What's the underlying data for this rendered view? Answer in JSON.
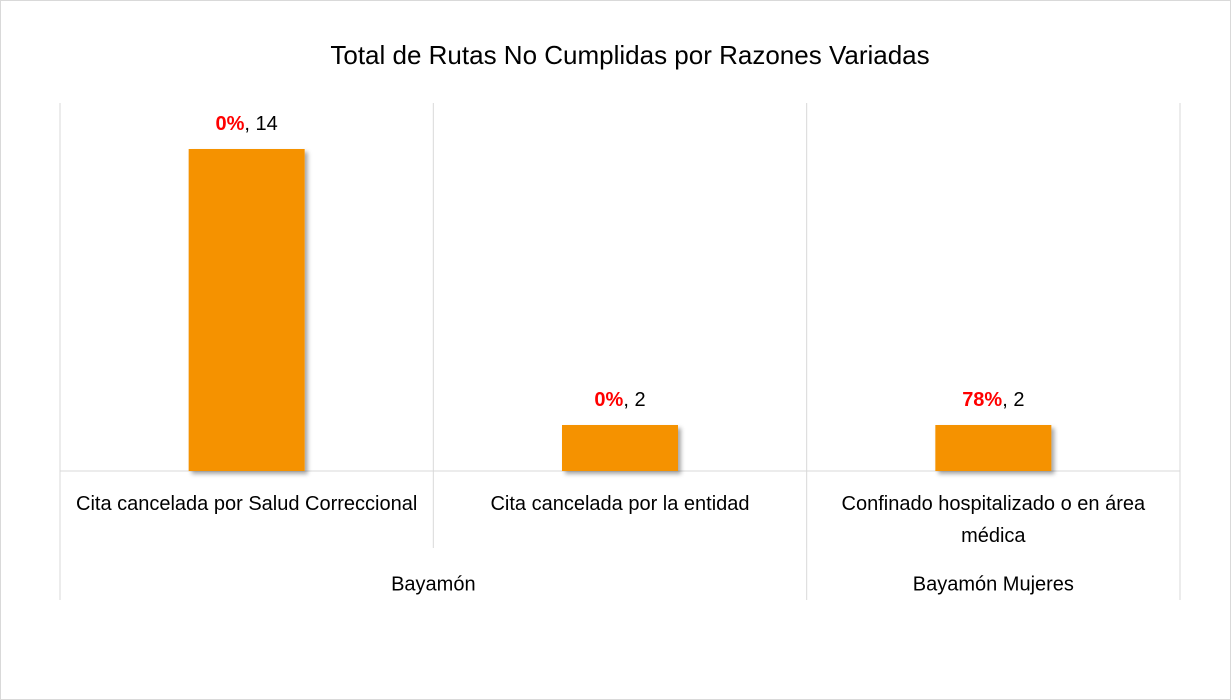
{
  "chart_data": {
    "type": "bar",
    "title": "Total de Rutas No Cumplidas por Razones Variadas",
    "categories": [
      "Cita cancelada por Salud Correccional",
      "Cita cancelada por la entidad",
      "Confinado hospitalizado o en área médica"
    ],
    "groups": [
      {
        "name": "Bayamón",
        "span": 2
      },
      {
        "name": "Bayamón Mujeres",
        "span": 1
      }
    ],
    "values": [
      14,
      2,
      2
    ],
    "percent_labels": [
      "0%",
      "0%",
      "78%"
    ],
    "color": "#f59200",
    "label_accent_color": "#ff0000",
    "ylim": [
      0,
      16
    ]
  }
}
